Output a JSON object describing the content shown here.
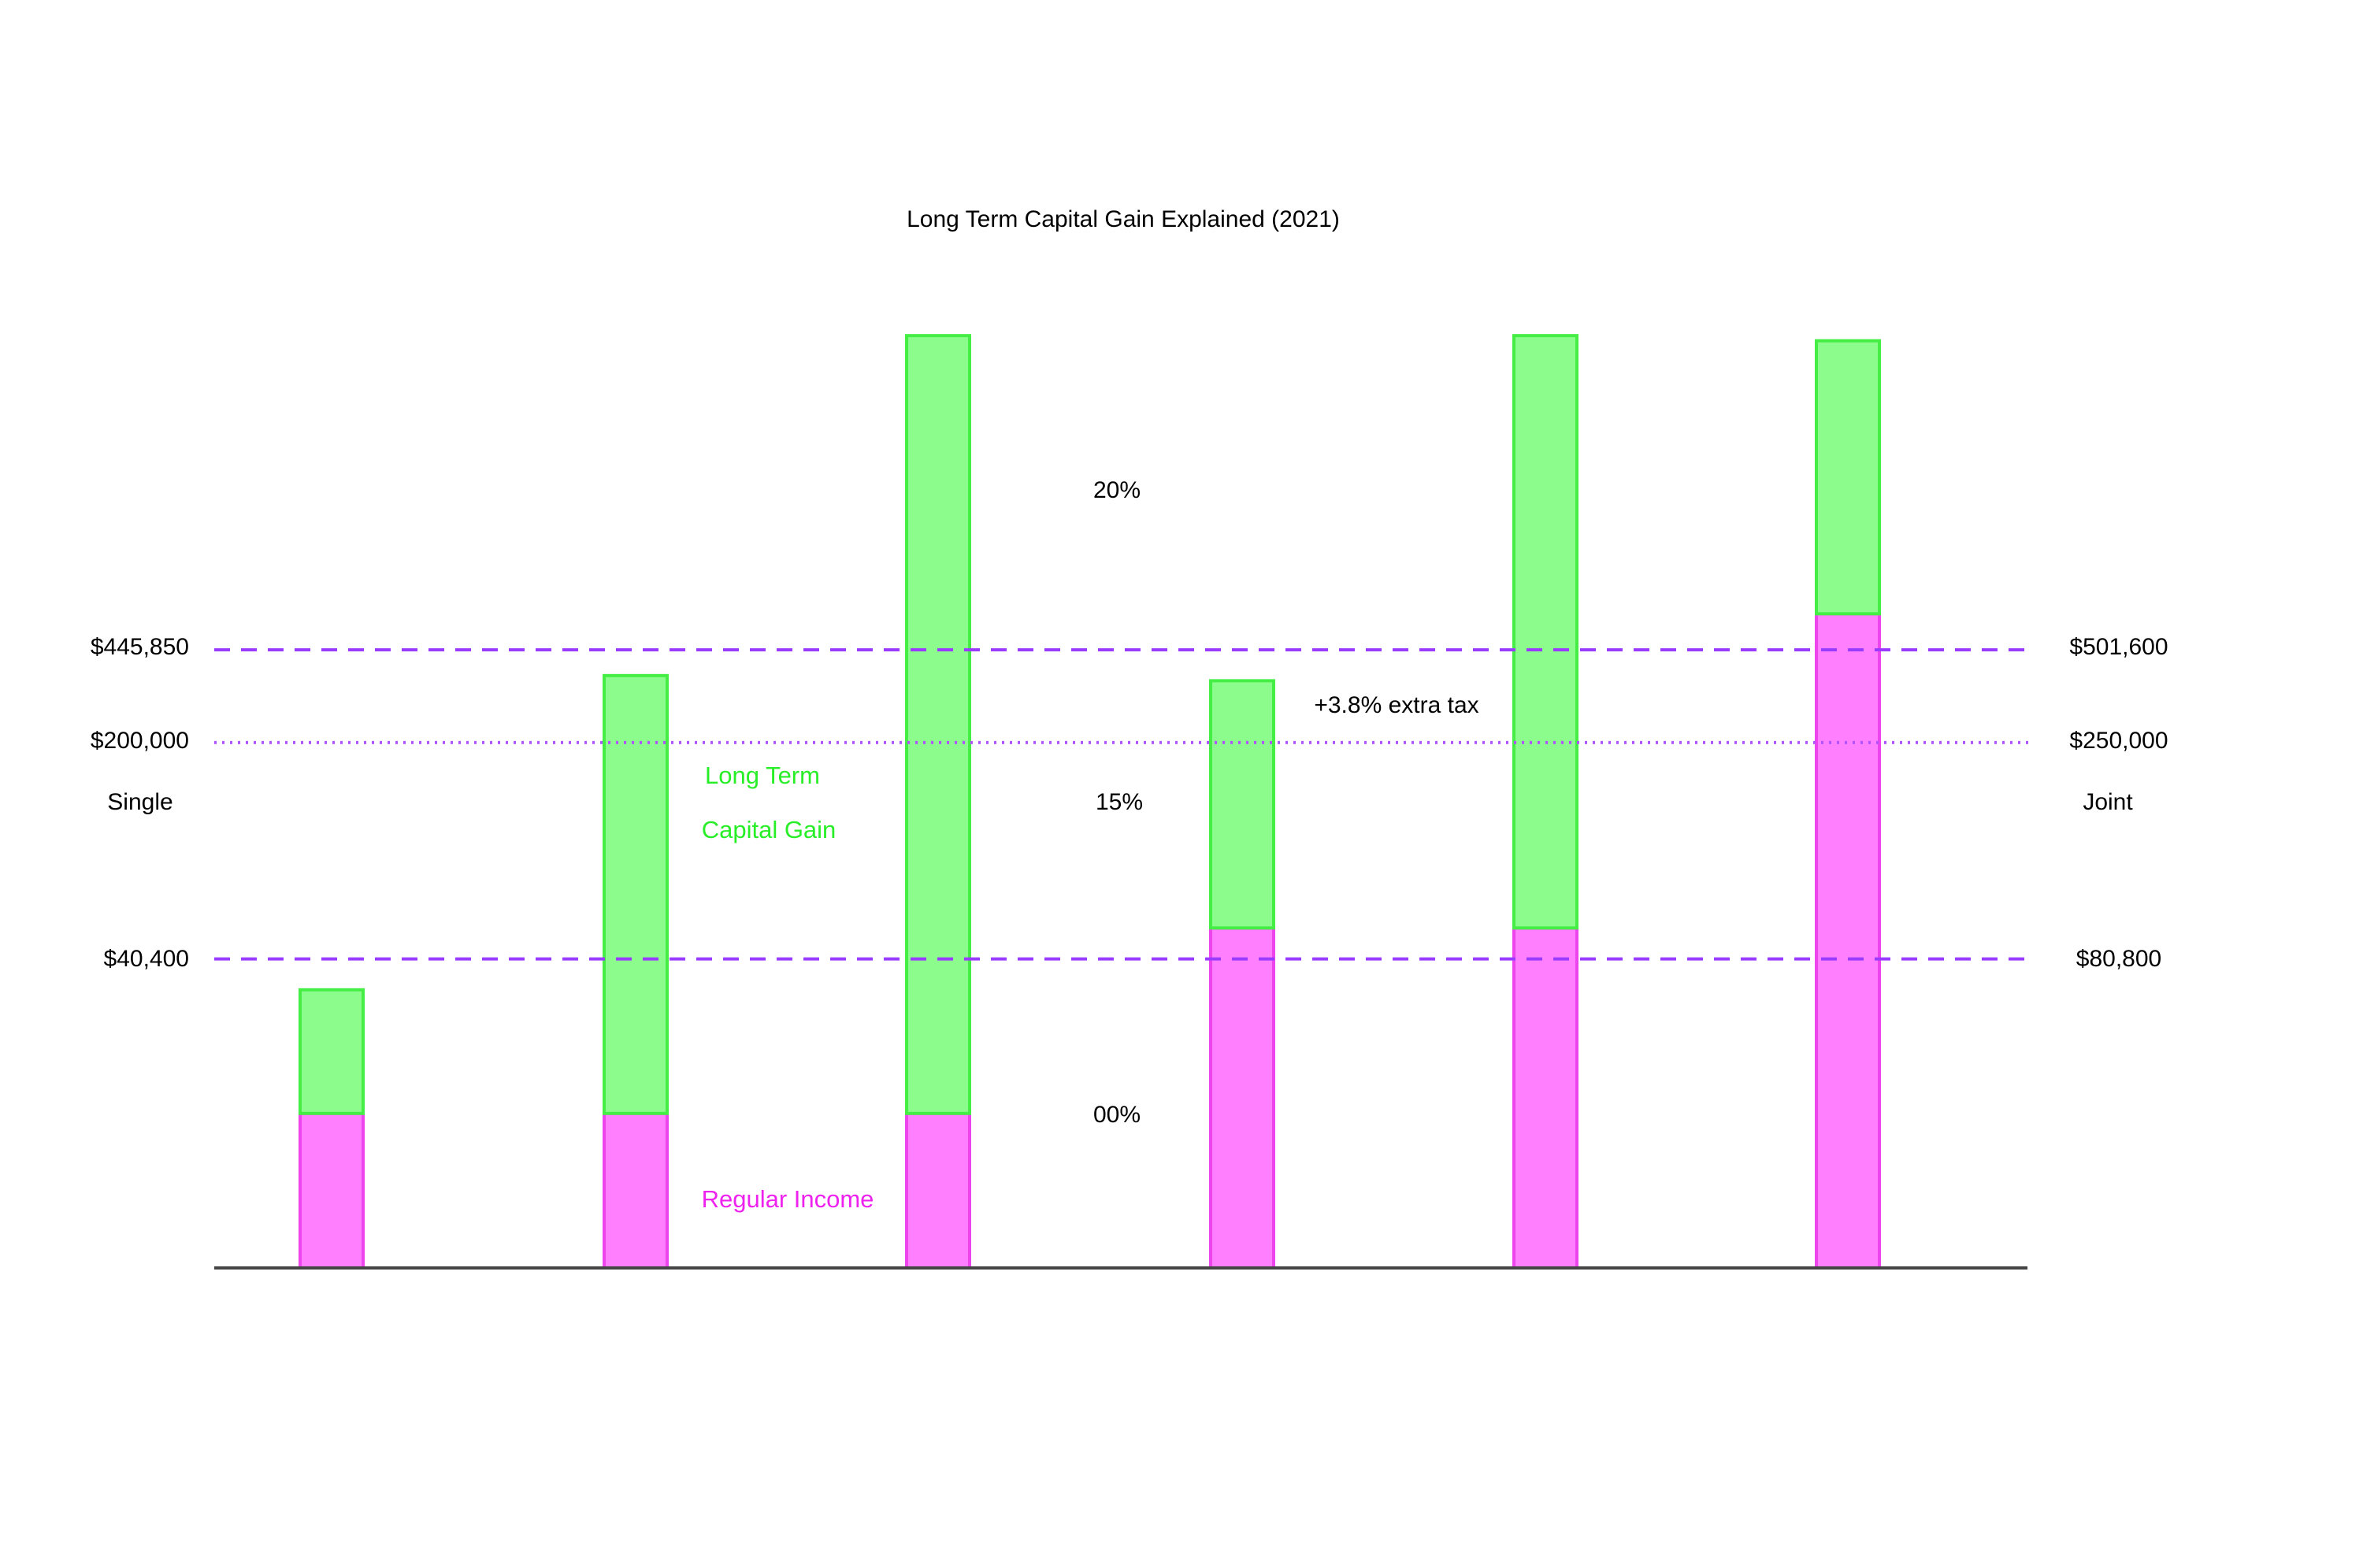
{
  "chart_data": {
    "type": "bar",
    "stacked": true,
    "title": "Long Term Capital Gain Explained (2021)",
    "series": [
      {
        "name": "Regular Income",
        "color": "#ff7fff",
        "stroke": "#ee44ee",
        "values": [
          0.3,
          0.3,
          0.3,
          0.66,
          0.66,
          1.27
        ]
      },
      {
        "name": "Long Term Capital Gain",
        "color": "#8cfd8c",
        "stroke": "#44ee44",
        "values": [
          0.24,
          0.85,
          1.51,
          0.48,
          1.15,
          0.53
        ]
      }
    ],
    "series_label_lines": {
      "capital_gain": [
        "Long Term",
        "Capital Gain"
      ],
      "regular_income": "Regular Income"
    },
    "threshold_lines": [
      {
        "id": "line-40400-80800",
        "style": "dashed",
        "color": "#9a3cff",
        "level": 0.6,
        "left_label": "$40,400",
        "right_label": "$80,800"
      },
      {
        "id": "line-200000-250000",
        "style": "dotted",
        "color": "#b154ff",
        "level": 1.02,
        "left_label": "$200,000",
        "right_label": "$250,000"
      },
      {
        "id": "line-445850-501600",
        "style": "dashed",
        "color": "#9a3cff",
        "level": 1.2,
        "left_label": "$445,850",
        "right_label": "$501,600"
      }
    ],
    "rate_labels": [
      "00%",
      "15%",
      "20%"
    ],
    "side_labels": {
      "left": "Single",
      "right": "Joint"
    },
    "annotation": "+3.8% extra tax",
    "ylim": [
      0,
      1.85
    ],
    "xlabel": "",
    "ylabel": "",
    "legend": "inline",
    "grid": false
  }
}
